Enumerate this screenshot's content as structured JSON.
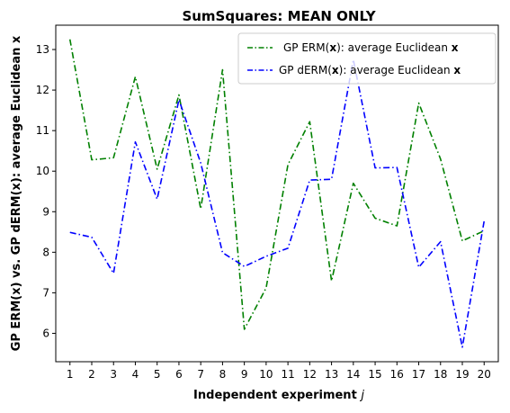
{
  "chart_data": {
    "type": "line",
    "title": "SumSquares: MEAN ONLY",
    "xlabel": "Independent experiment",
    "xlabel_var": "j",
    "ylabel": "GP ERM(x) vs. GP dERM(x): average Euclidean x",
    "x": [
      1,
      2,
      3,
      4,
      5,
      6,
      7,
      8,
      9,
      10,
      11,
      12,
      13,
      14,
      15,
      16,
      17,
      18,
      19,
      20
    ],
    "xlim": [
      0.35,
      20.65
    ],
    "ylim": [
      5.3,
      13.6
    ],
    "yticks": [
      6,
      7,
      8,
      9,
      10,
      11,
      12,
      13
    ],
    "grid": false,
    "legend_position": "top-right",
    "series": [
      {
        "name_prefix": "GP ERM(",
        "name_bold": "x",
        "name_suffix": "): average Euclidean ",
        "name_end_bold": "x",
        "color": "#008000",
        "values": [
          13.25,
          10.28,
          10.33,
          12.33,
          10.05,
          11.88,
          9.07,
          12.5,
          6.1,
          7.12,
          10.16,
          11.22,
          7.29,
          9.7,
          8.84,
          8.65,
          11.68,
          10.3,
          8.28,
          8.53
        ]
      },
      {
        "name_prefix": "GP dERM(",
        "name_bold": "x",
        "name_suffix": "): average Euclidean ",
        "name_end_bold": "x",
        "color": "#0000ff",
        "values": [
          8.49,
          8.37,
          7.48,
          10.72,
          9.31,
          11.76,
          10.2,
          7.99,
          7.65,
          7.9,
          8.1,
          9.78,
          9.8,
          12.75,
          10.08,
          10.09,
          7.63,
          8.26,
          5.66,
          8.77
        ]
      }
    ]
  }
}
